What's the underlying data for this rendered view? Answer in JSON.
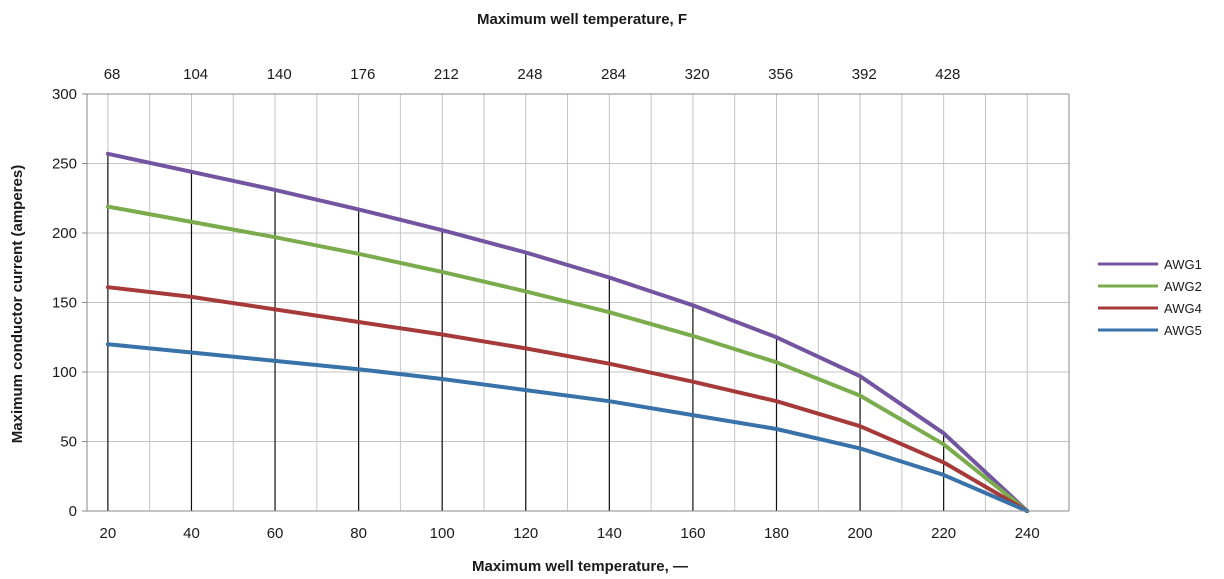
{
  "chart_data": {
    "type": "line",
    "top_title": "Maximum well temperature, F",
    "xlabel": "Maximum well temperature, —",
    "ylabel": "Maximum conductor current (amperes)",
    "x": [
      20,
      40,
      60,
      80,
      100,
      120,
      140,
      160,
      180,
      200,
      220,
      240
    ],
    "x_ticks": [
      "20",
      "40",
      "60",
      "80",
      "100",
      "120",
      "140",
      "160",
      "180",
      "200",
      "220",
      "240"
    ],
    "top_ticks": [
      "68",
      "104",
      "140",
      "176",
      "212",
      "248",
      "284",
      "320",
      "356",
      "392",
      "428"
    ],
    "y_ticks": [
      "0",
      "50",
      "100",
      "150",
      "200",
      "250",
      "300"
    ],
    "xlim": [
      15,
      250
    ],
    "ylim": [
      0,
      300
    ],
    "grid": true,
    "legend_position": "right",
    "series": [
      {
        "name": "AWG1",
        "color": "#7354a0",
        "values": [
          257,
          244,
          231,
          217,
          202,
          186,
          168,
          148,
          125,
          97,
          56,
          0
        ]
      },
      {
        "name": "AWG2",
        "color": "#7aab4c",
        "values": [
          219,
          208,
          197,
          185,
          172,
          158,
          143,
          126,
          107,
          83,
          48,
          0
        ]
      },
      {
        "name": "AWG4",
        "color": "#a63a3a",
        "values": [
          161,
          154,
          145,
          136,
          127,
          117,
          106,
          93,
          79,
          61,
          35,
          0
        ]
      },
      {
        "name": "AWG5",
        "color": "#3872a8",
        "values": [
          120,
          114,
          108,
          102,
          95,
          87,
          79,
          69,
          59,
          45,
          26,
          0
        ]
      }
    ]
  }
}
